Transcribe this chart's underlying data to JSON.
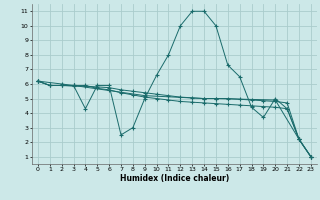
{
  "title": "",
  "xlabel": "Humidex (Indice chaleur)",
  "ylabel": "",
  "background_color": "#cce8e8",
  "grid_color": "#aacccc",
  "line_color": "#1a6b6b",
  "xlim": [
    -0.5,
    23.5
  ],
  "ylim": [
    0.5,
    11.5
  ],
  "xticks": [
    0,
    1,
    2,
    3,
    4,
    5,
    6,
    7,
    8,
    9,
    10,
    11,
    12,
    13,
    14,
    15,
    16,
    17,
    18,
    19,
    20,
    21,
    22,
    23
  ],
  "yticks": [
    1,
    2,
    3,
    4,
    5,
    6,
    7,
    8,
    9,
    10,
    11
  ],
  "lines": [
    {
      "x": [
        0,
        1,
        2,
        3,
        4,
        5,
        6,
        7,
        8,
        9,
        10,
        11,
        12,
        13,
        14,
        15,
        16,
        17,
        18,
        19,
        20,
        21,
        22,
        23
      ],
      "y": [
        6.2,
        5.9,
        5.9,
        5.85,
        5.85,
        5.8,
        5.75,
        5.6,
        5.5,
        5.4,
        5.3,
        5.2,
        5.1,
        5.05,
        5.0,
        5.0,
        5.0,
        4.95,
        4.9,
        4.85,
        4.8,
        4.7,
        2.2,
        1.0
      ]
    },
    {
      "x": [
        0,
        1,
        2,
        3,
        4,
        5,
        6,
        7,
        8,
        9,
        10,
        11,
        12,
        13,
        14,
        15,
        16,
        17,
        18,
        19,
        20,
        21,
        22,
        23
      ],
      "y": [
        6.2,
        5.9,
        5.9,
        5.9,
        4.3,
        5.9,
        5.9,
        2.5,
        3.0,
        5.0,
        6.6,
        8.0,
        10.0,
        11.0,
        11.0,
        10.0,
        7.3,
        6.5,
        4.4,
        3.7,
        5.0,
        4.3,
        2.2,
        1.0
      ]
    },
    {
      "x": [
        0,
        1,
        2,
        3,
        4,
        5,
        6,
        7,
        8,
        9,
        10,
        11,
        12,
        13,
        14,
        15,
        16,
        17,
        18,
        19,
        20,
        21,
        22,
        23
      ],
      "y": [
        6.2,
        5.9,
        5.9,
        5.9,
        5.9,
        5.7,
        5.6,
        5.4,
        5.25,
        5.1,
        5.0,
        4.9,
        4.8,
        4.75,
        4.7,
        4.65,
        4.6,
        4.55,
        4.5,
        4.45,
        4.4,
        4.3,
        2.2,
        1.0
      ]
    },
    {
      "x": [
        0,
        2,
        3,
        9,
        14,
        15,
        20,
        22,
        23
      ],
      "y": [
        6.2,
        6.0,
        5.9,
        5.2,
        5.0,
        5.0,
        4.9,
        2.2,
        1.0
      ]
    }
  ]
}
